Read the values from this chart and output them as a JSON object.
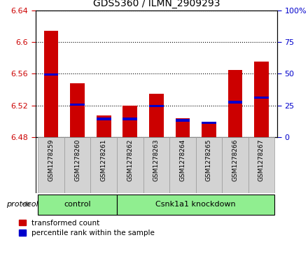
{
  "title": "GDS5360 / ILMN_2909293",
  "samples": [
    "GSM1278259",
    "GSM1278260",
    "GSM1278261",
    "GSM1278262",
    "GSM1278263",
    "GSM1278264",
    "GSM1278265",
    "GSM1278266",
    "GSM1278267"
  ],
  "red_values": [
    6.614,
    6.548,
    6.507,
    6.52,
    6.535,
    6.504,
    6.499,
    6.565,
    6.575
  ],
  "blue_values": [
    6.559,
    6.521,
    6.503,
    6.503,
    6.519,
    6.501,
    6.498,
    6.524,
    6.53
  ],
  "ylim_left": [
    6.48,
    6.64
  ],
  "ylim_right": [
    0,
    100
  ],
  "yticks_left": [
    6.48,
    6.52,
    6.56,
    6.6,
    6.64
  ],
  "yticks_right": [
    0,
    25,
    50,
    75,
    100
  ],
  "ytick_labels_left": [
    "6.48",
    "6.52",
    "6.56",
    "6.6",
    "6.64"
  ],
  "ytick_labels_right": [
    "0",
    "25",
    "50",
    "75",
    "100%"
  ],
  "groups": [
    {
      "label": "control",
      "start": 0,
      "end": 3
    },
    {
      "label": "Csnk1a1 knockdown",
      "start": 3,
      "end": 9
    }
  ],
  "protocol_label": "protocol",
  "bar_bottom": 6.48,
  "red_color": "#cc0000",
  "blue_color": "#0000cc",
  "green_color": "#90ee90",
  "sample_box_color": "#d3d3d3",
  "plot_bg": "#ffffff",
  "legend_red": "transformed count",
  "legend_blue": "percentile rank within the sample",
  "blue_bar_height": 0.003,
  "bar_width": 0.55
}
